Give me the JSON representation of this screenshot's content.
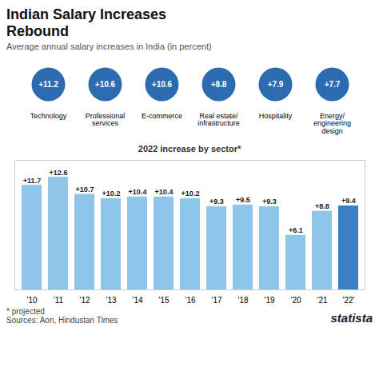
{
  "title": "Indian Salary Increases\nRebound",
  "subtitle": "Average annual salary increases in India (in percent)",
  "annotations": [
    "* projected",
    "Sources: Aon, Hindustan Times",
    "statista"
  ],
  "chart_data": [
    {
      "type": "dot",
      "title": "2022 increase by sector*",
      "categories": [
        "Technology",
        "Professional\nservices",
        "E-commerce",
        "Real estate/\ninfrastructure",
        "Hospitality",
        "Energy/\nengineering\ndesign"
      ],
      "values": [
        11.2,
        10.6,
        10.6,
        8.8,
        7.9,
        7.7
      ],
      "value_labels": [
        "+11.2",
        "+10.6",
        "+10.6",
        "+8.8",
        "+7.9",
        "+7.7"
      ],
      "color": "#2b6cb0",
      "data_labels": true,
      "tick_labels": "x"
    },
    {
      "type": "bar",
      "categories": [
        "'10",
        "'11",
        "'12",
        "'13",
        "'14",
        "'15",
        "'16",
        "'17",
        "'18",
        "'19",
        "'20",
        "'21",
        "'22'"
      ],
      "values": [
        11.7,
        12.6,
        10.7,
        10.2,
        10.4,
        10.4,
        10.2,
        9.3,
        9.5,
        9.3,
        6.1,
        8.8,
        9.4
      ],
      "value_labels": [
        "+11.7",
        "+12.6",
        "+10.7",
        "+10.2",
        "+10.4",
        "+10.4",
        "+10.2",
        "+9.3",
        "+9.5",
        "+9.3",
        "+6.1",
        "+8.8",
        "+9.4"
      ],
      "colors": [
        "#8dc6e8",
        "#8dc6e8",
        "#8dc6e8",
        "#8dc6e8",
        "#8dc6e8",
        "#8dc6e8",
        "#8dc6e8",
        "#8dc6e8",
        "#8dc6e8",
        "#8dc6e8",
        "#8dc6e8",
        "#8dc6e8",
        "#3a7fc1"
      ],
      "ylim": [
        0,
        14.5
      ],
      "data_labels": true,
      "tick_labels": "x",
      "grid": false
    }
  ]
}
